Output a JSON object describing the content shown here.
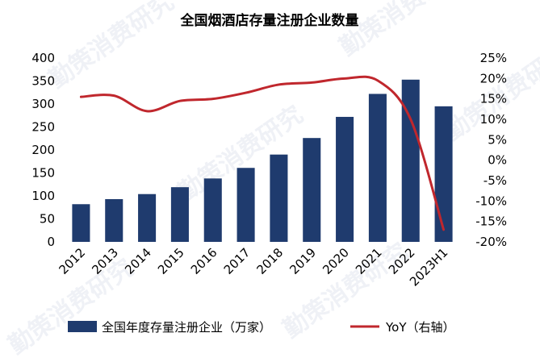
{
  "chart_data": {
    "type": "bar",
    "title": "全国烟酒店存量注册企业数量",
    "categories": [
      "2012",
      "2013",
      "2014",
      "2015",
      "2016",
      "2017",
      "2018",
      "2019",
      "2020",
      "2021",
      "2022",
      "2023H1"
    ],
    "series": [
      {
        "name": "全国年度存量注册企业（万家）",
        "type": "bar",
        "axis": "left",
        "color": "#1f3b6e",
        "values": [
          82,
          93,
          104,
          119,
          138,
          161,
          190,
          226,
          272,
          322,
          353,
          295
        ]
      },
      {
        "name": "YoY（右轴）",
        "type": "line",
        "axis": "right",
        "unit": "%",
        "color": "#c0272d",
        "values": [
          15.5,
          15.8,
          12.0,
          14.5,
          15.0,
          16.5,
          18.5,
          19.0,
          20.0,
          19.5,
          10.0,
          -17.0
        ]
      }
    ],
    "left_axis": {
      "min": 0,
      "max": 400,
      "step": 50,
      "ticks": [
        "0",
        "50",
        "100",
        "150",
        "200",
        "250",
        "300",
        "350",
        "400"
      ]
    },
    "right_axis": {
      "min": -20,
      "max": 25,
      "step": 5,
      "ticks": [
        "-20%",
        "-15%",
        "-10%",
        "-5%",
        "0%",
        "5%",
        "10%",
        "15%",
        "20%",
        "25%"
      ]
    },
    "grid": false,
    "legend_position": "bottom",
    "watermark": "勤策消费研究"
  }
}
